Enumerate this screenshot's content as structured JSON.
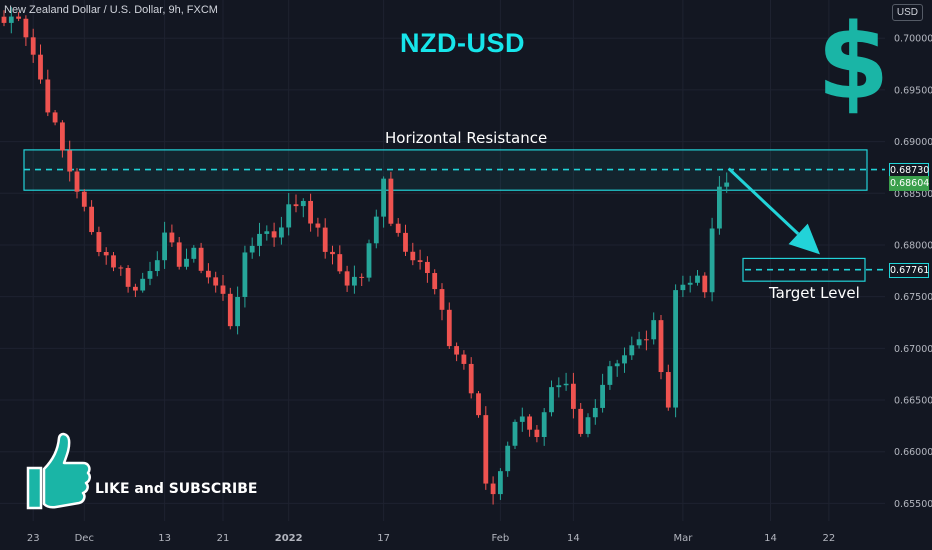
{
  "header": {
    "symbol_title": "New Zealand Dollar / U.S. Dollar, 9h, FXCM",
    "currency": "USD"
  },
  "annotations": {
    "main_title": "NZD-USD",
    "dollar_symbol": "$",
    "resistance_label": "Horizontal Resistance",
    "target_label": "Target Level",
    "like_label": "LIKE and SUBSCRIBE"
  },
  "price_tags": [
    {
      "label": "0.68730",
      "value": 0.6873,
      "background": "#131722",
      "border": "#22d3d8",
      "text": "#ffffff"
    },
    {
      "label": "0.68604",
      "value": 0.68604,
      "background": "#3a9f4c",
      "border": "#3a9f4c",
      "text": "#ffffff"
    },
    {
      "label": "0.67761",
      "value": 0.67761,
      "background": "#131722",
      "border": "#22d3d8",
      "text": "#ffffff"
    }
  ],
  "colors": {
    "background": "#131722",
    "up_candle": "#26a69a",
    "down_candle": "#ef5350",
    "zone_border": "#22d3d8",
    "zone_fill": "rgba(34,211,216,0.07)",
    "axis_text": "#b2b5be",
    "grid": "#1e2230"
  },
  "chart_data": {
    "type": "candlestick",
    "title": "NZD-USD",
    "symbol": "New Zealand Dollar / U.S. Dollar, 9h, FXCM",
    "y_axis": {
      "range": [
        0.6533,
        0.7037
      ],
      "ticks": [
        0.7,
        0.695,
        0.69,
        0.685,
        0.68,
        0.675,
        0.67,
        0.665,
        0.66,
        0.655
      ],
      "tick_labels": [
        "0.70000",
        "0.69500",
        "0.69000",
        "0.68500",
        "0.68000",
        "0.67500",
        "0.67000",
        "0.66500",
        "0.66000",
        "0.65500"
      ]
    },
    "x_axis": {
      "tick_labels": [
        "23",
        "Dec",
        "13",
        "21",
        "2022",
        "17",
        "Feb",
        "14",
        "Mar",
        "14",
        "22"
      ],
      "tick_index": [
        4,
        11,
        22,
        30,
        39,
        52,
        68,
        78,
        93,
        105,
        113
      ]
    },
    "resistance_zone": {
      "low": 0.6853,
      "high": 0.6892,
      "level": 0.6873
    },
    "target_level": {
      "value": 0.67761,
      "zone_low": 0.6765,
      "zone_high": 0.6787
    },
    "last_price": 0.68604,
    "price_anchors": [
      [
        0,
        0.7015
      ],
      [
        2,
        0.7025
      ],
      [
        4,
        0.6985
      ],
      [
        6,
        0.6935
      ],
      [
        8,
        0.689
      ],
      [
        10,
        0.6855
      ],
      [
        12,
        0.681
      ],
      [
        14,
        0.679
      ],
      [
        16,
        0.6775
      ],
      [
        18,
        0.6755
      ],
      [
        20,
        0.678
      ],
      [
        22,
        0.6805
      ],
      [
        24,
        0.6785
      ],
      [
        26,
        0.679
      ],
      [
        28,
        0.677
      ],
      [
        30,
        0.675
      ],
      [
        31,
        0.6725
      ],
      [
        33,
        0.6785
      ],
      [
        35,
        0.6815
      ],
      [
        37,
        0.681
      ],
      [
        39,
        0.6835
      ],
      [
        41,
        0.6845
      ],
      [
        43,
        0.681
      ],
      [
        45,
        0.6785
      ],
      [
        47,
        0.6765
      ],
      [
        49,
        0.677
      ],
      [
        51,
        0.6825
      ],
      [
        52,
        0.687
      ],
      [
        53,
        0.6825
      ],
      [
        55,
        0.68
      ],
      [
        57,
        0.6785
      ],
      [
        59,
        0.6755
      ],
      [
        61,
        0.6705
      ],
      [
        63,
        0.6685
      ],
      [
        65,
        0.663
      ],
      [
        66,
        0.657
      ],
      [
        67,
        0.656
      ],
      [
        69,
        0.661
      ],
      [
        71,
        0.664
      ],
      [
        73,
        0.661
      ],
      [
        75,
        0.6655
      ],
      [
        77,
        0.666
      ],
      [
        79,
        0.6615
      ],
      [
        81,
        0.665
      ],
      [
        83,
        0.6685
      ],
      [
        85,
        0.6695
      ],
      [
        87,
        0.6705
      ],
      [
        89,
        0.672
      ],
      [
        90,
        0.6685
      ],
      [
        91,
        0.6645
      ],
      [
        92,
        0.6755
      ],
      [
        94,
        0.677
      ],
      [
        96,
        0.6755
      ],
      [
        97,
        0.681
      ],
      [
        98,
        0.6855
      ],
      [
        99,
        0.68604
      ]
    ]
  }
}
